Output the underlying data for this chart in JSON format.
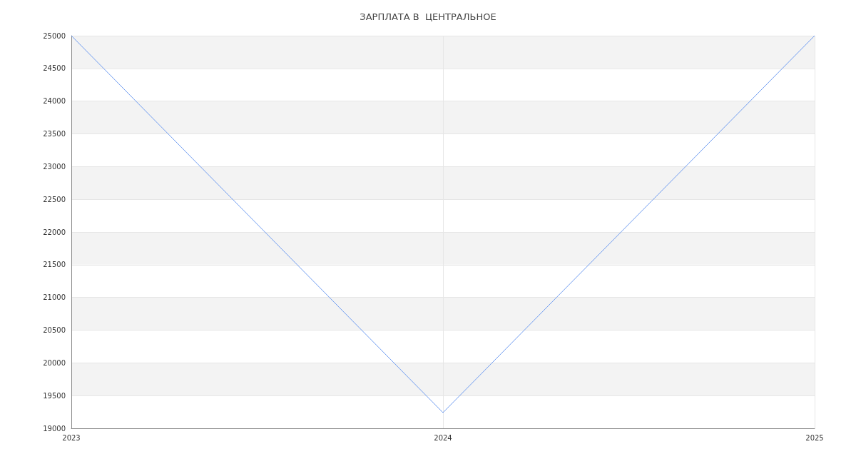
{
  "chart_data": {
    "type": "line",
    "title": "ЗАРПЛАТА В  ЦЕНТРАЛЬНОЕ",
    "categories": [
      "2023",
      "2024",
      "2025"
    ],
    "series": [
      {
        "color": "#6f9cf0",
        "values": [
          25000,
          19240,
          25000
        ]
      }
    ],
    "ylim": [
      19000,
      25000
    ],
    "yticks": [
      19000,
      19500,
      20000,
      20500,
      21000,
      21500,
      22000,
      22500,
      23000,
      23500,
      24000,
      24500,
      25000
    ],
    "grid": true,
    "marker": "none",
    "line_style": "solid"
  }
}
